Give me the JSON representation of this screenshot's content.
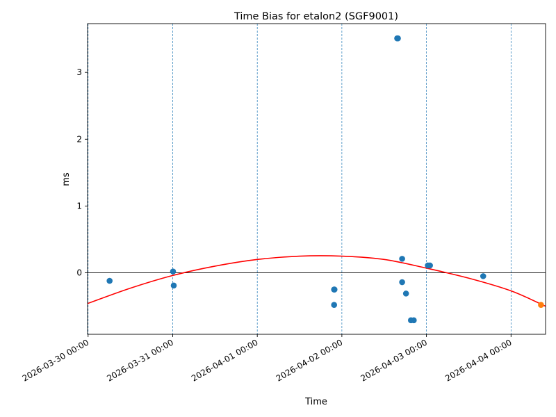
{
  "chart_data": {
    "type": "scatter",
    "title": "Time Bias for etalon2 (SGF9001)",
    "xlabel": "Time",
    "ylabel": "ms",
    "x_axis_type": "datetime",
    "xlim": [
      "2026-03-29T23:51:00",
      "2026-04-04T09:48:00"
    ],
    "ylim": [
      -0.92,
      3.73
    ],
    "x_ticks": [
      "2026-03-30 00:00",
      "2026-03-31 00:00",
      "2026-04-01 00:00",
      "2026-04-02 00:00",
      "2026-04-03 00:00",
      "2026-04-04 00:00"
    ],
    "y_ticks": [
      0,
      1,
      2,
      3
    ],
    "grid": "vertical dashed at x ticks",
    "zero_line": true,
    "colors": {
      "points": "#1f77b4",
      "latest": "#ff7f0e",
      "fit": "#ff0000",
      "grid": "#1f77b4"
    },
    "series": [
      {
        "kind": "points",
        "x": [
          "2026-03-30T06:06:00",
          "2026-03-30T24:06:00",
          "2026-03-30T24:18:00",
          "2026-04-01T21:48:00",
          "2026-04-01T21:54:00",
          "2026-04-01T21:48:00",
          "2026-04-02T15:42:00",
          "2026-04-02T15:54:00",
          "2026-04-02T17:06:00",
          "2026-04-02T17:06:00",
          "2026-04-02T18:12:00",
          "2026-04-02T19:36:00",
          "2026-04-02T20:24:00",
          "2026-04-03T00:24:00",
          "2026-04-03T01:00:00",
          "2026-04-03T16:06:00"
        ],
        "y": [
          -0.12,
          0.02,
          -0.19,
          -0.25,
          -0.25,
          -0.48,
          3.51,
          3.51,
          0.21,
          -0.14,
          -0.31,
          -0.71,
          -0.71,
          0.11,
          0.11,
          -0.05
        ]
      },
      {
        "kind": "latest-point",
        "x": [
          "2026-04-04T08:30:00"
        ],
        "y": [
          -0.48
        ]
      },
      {
        "kind": "fit-curve",
        "x": [
          "2026-03-29T23:51:00",
          "2026-03-30T12:00:00",
          "2026-03-31T00:00:00",
          "2026-03-31T12:00:00",
          "2026-04-01T00:00:00",
          "2026-04-01T12:00:00",
          "2026-04-02T00:00:00",
          "2026-04-02T12:00:00",
          "2026-04-03T00:00:00",
          "2026-04-03T12:00:00",
          "2026-04-04T00:00:00",
          "2026-04-04T09:48:00"
        ],
        "y": [
          -0.46,
          -0.23,
          -0.04,
          0.1,
          0.2,
          0.25,
          0.25,
          0.2,
          0.07,
          -0.08,
          -0.27,
          -0.5
        ]
      }
    ]
  }
}
